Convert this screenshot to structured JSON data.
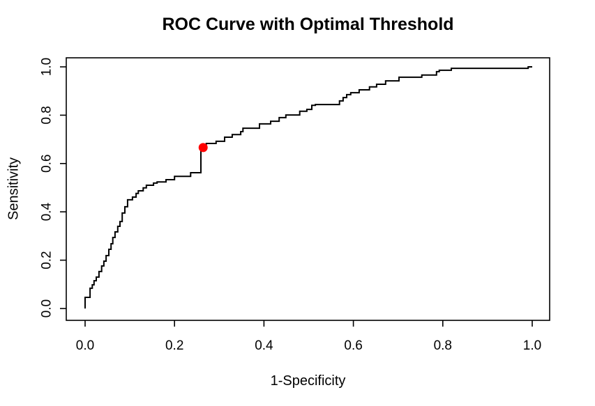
{
  "chart_data": {
    "type": "line",
    "subtype": "roc-step-curve",
    "title": "ROC Curve with Optimal Threshold",
    "xlabel": "1-Specificity",
    "ylabel": "Sensitivity",
    "xlim": [
      0.0,
      1.0
    ],
    "ylim": [
      0.0,
      1.0
    ],
    "x_tick_values": [
      0.0,
      0.2,
      0.4,
      0.6,
      0.8,
      1.0
    ],
    "y_tick_values": [
      0.0,
      0.2,
      0.4,
      0.6,
      0.8,
      1.0
    ],
    "x_tick_labels": [
      "0.0",
      "0.2",
      "0.4",
      "0.6",
      "0.8",
      "1.0"
    ],
    "y_tick_labels": [
      "0.0",
      "0.2",
      "0.4",
      "0.6",
      "0.8",
      "1.0"
    ],
    "grid": false,
    "legend": "none",
    "colors": {
      "curve": "#000000",
      "optimal_point": "#ff0000",
      "axis": "#000000",
      "text": "#000000",
      "background": "#ffffff"
    },
    "series": [
      {
        "name": "ROC curve",
        "step": true,
        "color": "#000000",
        "line_width": 2,
        "points": [
          [
            0.0,
            0.0
          ],
          [
            0.0,
            0.046
          ],
          [
            0.011,
            0.046
          ],
          [
            0.011,
            0.084
          ],
          [
            0.016,
            0.084
          ],
          [
            0.016,
            0.098
          ],
          [
            0.02,
            0.098
          ],
          [
            0.02,
            0.115
          ],
          [
            0.025,
            0.115
          ],
          [
            0.025,
            0.13
          ],
          [
            0.031,
            0.13
          ],
          [
            0.031,
            0.153
          ],
          [
            0.037,
            0.153
          ],
          [
            0.037,
            0.176
          ],
          [
            0.042,
            0.176
          ],
          [
            0.042,
            0.196
          ],
          [
            0.047,
            0.196
          ],
          [
            0.047,
            0.219
          ],
          [
            0.053,
            0.219
          ],
          [
            0.053,
            0.245
          ],
          [
            0.058,
            0.245
          ],
          [
            0.058,
            0.268
          ],
          [
            0.062,
            0.268
          ],
          [
            0.062,
            0.294
          ],
          [
            0.067,
            0.294
          ],
          [
            0.067,
            0.317
          ],
          [
            0.073,
            0.317
          ],
          [
            0.073,
            0.34
          ],
          [
            0.078,
            0.34
          ],
          [
            0.078,
            0.36
          ],
          [
            0.083,
            0.36
          ],
          [
            0.083,
            0.395
          ],
          [
            0.089,
            0.395
          ],
          [
            0.089,
            0.421
          ],
          [
            0.095,
            0.421
          ],
          [
            0.095,
            0.45
          ],
          [
            0.106,
            0.45
          ],
          [
            0.106,
            0.461
          ],
          [
            0.114,
            0.461
          ],
          [
            0.114,
            0.476
          ],
          [
            0.119,
            0.476
          ],
          [
            0.119,
            0.487
          ],
          [
            0.13,
            0.487
          ],
          [
            0.13,
            0.499
          ],
          [
            0.137,
            0.499
          ],
          [
            0.137,
            0.51
          ],
          [
            0.153,
            0.51
          ],
          [
            0.153,
            0.519
          ],
          [
            0.161,
            0.519
          ],
          [
            0.161,
            0.524
          ],
          [
            0.181,
            0.524
          ],
          [
            0.181,
            0.533
          ],
          [
            0.2,
            0.533
          ],
          [
            0.2,
            0.547
          ],
          [
            0.236,
            0.547
          ],
          [
            0.236,
            0.562
          ],
          [
            0.259,
            0.562
          ],
          [
            0.259,
            0.663
          ],
          [
            0.271,
            0.663
          ],
          [
            0.271,
            0.683
          ],
          [
            0.293,
            0.683
          ],
          [
            0.293,
            0.692
          ],
          [
            0.312,
            0.692
          ],
          [
            0.312,
            0.709
          ],
          [
            0.329,
            0.709
          ],
          [
            0.329,
            0.72
          ],
          [
            0.348,
            0.72
          ],
          [
            0.348,
            0.732
          ],
          [
            0.353,
            0.732
          ],
          [
            0.353,
            0.746
          ],
          [
            0.39,
            0.746
          ],
          [
            0.39,
            0.764
          ],
          [
            0.415,
            0.764
          ],
          [
            0.415,
            0.775
          ],
          [
            0.434,
            0.775
          ],
          [
            0.434,
            0.79
          ],
          [
            0.449,
            0.79
          ],
          [
            0.449,
            0.801
          ],
          [
            0.48,
            0.801
          ],
          [
            0.48,
            0.816
          ],
          [
            0.496,
            0.816
          ],
          [
            0.496,
            0.824
          ],
          [
            0.507,
            0.824
          ],
          [
            0.507,
            0.841
          ],
          [
            0.515,
            0.841
          ],
          [
            0.515,
            0.844
          ],
          [
            0.569,
            0.844
          ],
          [
            0.569,
            0.859
          ],
          [
            0.577,
            0.859
          ],
          [
            0.577,
            0.873
          ],
          [
            0.585,
            0.873
          ],
          [
            0.585,
            0.885
          ],
          [
            0.594,
            0.885
          ],
          [
            0.594,
            0.893
          ],
          [
            0.613,
            0.893
          ],
          [
            0.613,
            0.905
          ],
          [
            0.636,
            0.905
          ],
          [
            0.636,
            0.917
          ],
          [
            0.652,
            0.917
          ],
          [
            0.652,
            0.928
          ],
          [
            0.672,
            0.928
          ],
          [
            0.672,
            0.942
          ],
          [
            0.702,
            0.942
          ],
          [
            0.702,
            0.957
          ],
          [
            0.753,
            0.957
          ],
          [
            0.753,
            0.966
          ],
          [
            0.786,
            0.966
          ],
          [
            0.786,
            0.98
          ],
          [
            0.792,
            0.98
          ],
          [
            0.792,
            0.986
          ],
          [
            0.819,
            0.986
          ],
          [
            0.819,
            0.994
          ],
          [
            0.991,
            0.994
          ],
          [
            0.991,
            1.0
          ],
          [
            1.0,
            1.0
          ]
        ]
      }
    ],
    "optimal_point": {
      "x": 0.264,
      "y": 0.666,
      "radius": 6.5,
      "color": "#ff0000"
    }
  }
}
